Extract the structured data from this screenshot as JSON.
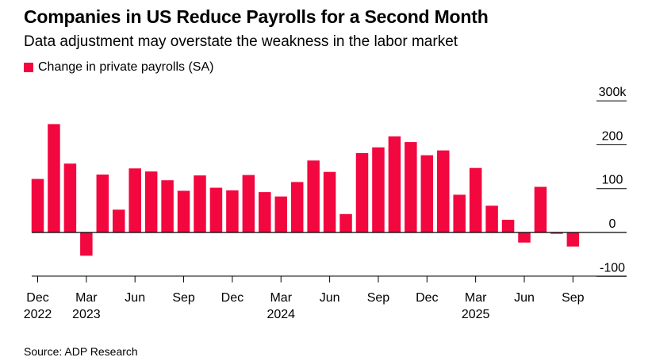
{
  "title": "Companies in US Reduce Payrolls for a Second Month",
  "subtitle": "Data adjustment may overstate the weakness in the labor market",
  "source": "Source: ADP Research",
  "accent_color": "#f2073f",
  "chart_data": {
    "type": "bar",
    "legend": [
      "Change in private payrolls (SA)"
    ],
    "legend_position": "top-left",
    "y_axis_position": "right",
    "grid": true,
    "ylim": [
      -100,
      300
    ],
    "y_ticks": [
      -100,
      0,
      100,
      200,
      300
    ],
    "y_tick_labels": [
      "-100",
      "0",
      "100",
      "200",
      "300k"
    ],
    "x_tick_labels": [
      {
        "index": 0,
        "line1": "Dec",
        "line2": "2022"
      },
      {
        "index": 3,
        "line1": "Mar",
        "line2": "2023"
      },
      {
        "index": 6,
        "line1": "Jun",
        "line2": ""
      },
      {
        "index": 9,
        "line1": "Sep",
        "line2": ""
      },
      {
        "index": 12,
        "line1": "Dec",
        "line2": ""
      },
      {
        "index": 15,
        "line1": "Mar",
        "line2": "2024"
      },
      {
        "index": 18,
        "line1": "Jun",
        "line2": ""
      },
      {
        "index": 21,
        "line1": "Sep",
        "line2": ""
      },
      {
        "index": 24,
        "line1": "Dec",
        "line2": ""
      },
      {
        "index": 27,
        "line1": "Mar",
        "line2": "2025"
      },
      {
        "index": 30,
        "line1": "Jun",
        "line2": ""
      },
      {
        "index": 33,
        "line1": "Sep",
        "line2": ""
      }
    ],
    "categories": [
      "Dec 2022",
      "Jan 2023",
      "Feb 2023",
      "Mar 2023",
      "Apr 2023",
      "May 2023",
      "Jun 2023",
      "Jul 2023",
      "Aug 2023",
      "Sep 2023",
      "Oct 2023",
      "Nov 2023",
      "Dec 2023",
      "Jan 2024",
      "Feb 2024",
      "Mar 2024",
      "Apr 2024",
      "May 2024",
      "Jun 2024",
      "Jul 2024",
      "Aug 2024",
      "Sep 2024",
      "Oct 2024",
      "Nov 2024",
      "Dec 2024",
      "Jan 2025",
      "Feb 2025",
      "Mar 2025",
      "Apr 2025",
      "May 2025",
      "Jun 2025",
      "Jul 2025",
      "Aug 2025",
      "Sep 2025"
    ],
    "series": [
      {
        "name": "Change in private payrolls (SA)",
        "values": [
          122,
          247,
          157,
          -53,
          132,
          52,
          146,
          139,
          119,
          95,
          130,
          102,
          96,
          131,
          92,
          82,
          115,
          164,
          138,
          42,
          181,
          194,
          219,
          206,
          176,
          187,
          86,
          147,
          61,
          29,
          -23,
          104,
          -3,
          -32
        ]
      }
    ]
  }
}
